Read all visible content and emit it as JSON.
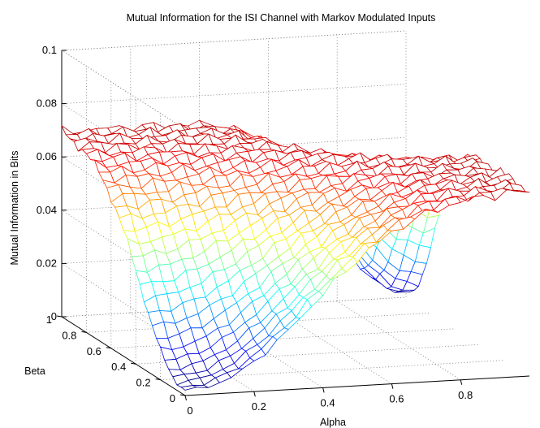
{
  "chart_data": {
    "type": "surface",
    "title": "Mutual Information for the ISI Channel with Markov Modulated Inputs",
    "xlabel": "Alpha",
    "ylabel": "Beta",
    "zlabel": "Mutual Information in Bits",
    "xlim": [
      0,
      1
    ],
    "ylim": [
      0,
      1
    ],
    "zlim": [
      0,
      0.1
    ],
    "xticks": [
      "0",
      "0.2",
      "0.4",
      "0.6",
      "0.8"
    ],
    "yticks": [
      "0",
      "0.2",
      "0.4",
      "0.6",
      "0.8",
      "1"
    ],
    "zticks": [
      "0",
      "0.02",
      "0.04",
      "0.06",
      "0.08",
      "0.1"
    ],
    "grid": true,
    "colormap": "jet",
    "surface": {
      "description_values": "Mutual information over Alpha and Beta on a 0-1 grid",
      "plateau_value": 0.07,
      "min_value": 0.002,
      "minima": [
        {
          "alpha": 0.0,
          "beta": 0.0,
          "z": 0.002
        },
        {
          "alpha": 1.0,
          "beta": 1.0,
          "z": 0.002
        }
      ],
      "grid_size": 31
    }
  }
}
